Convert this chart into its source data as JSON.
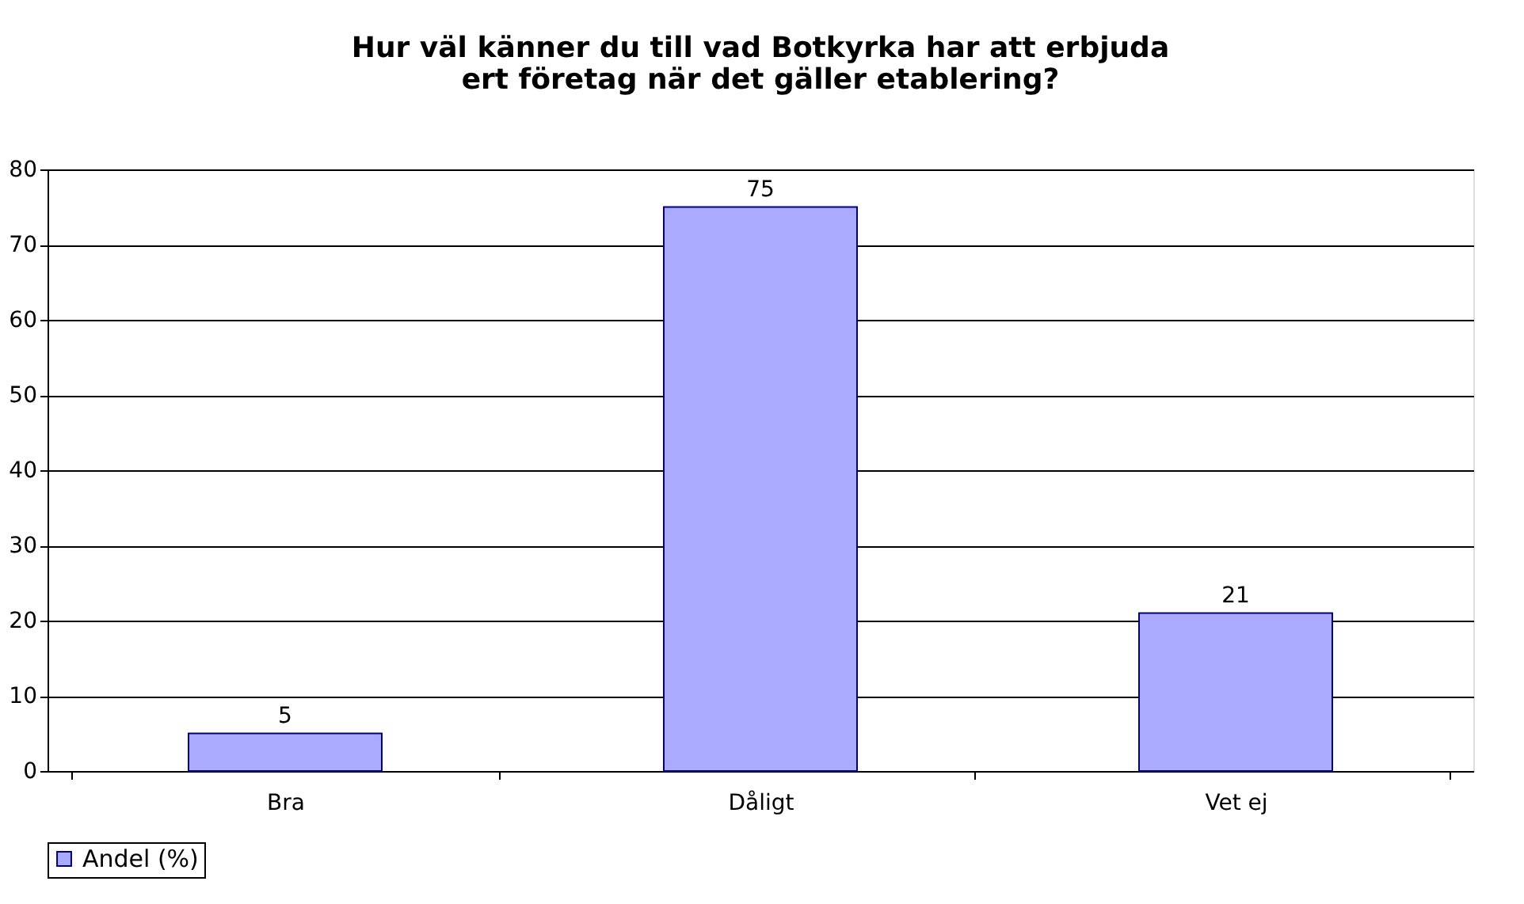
{
  "chart_data": {
    "type": "bar",
    "title": [
      "Hur väl känner du till vad Botkyrka har att erbjuda",
      "ert företag när det gäller etablering?"
    ],
    "categories": [
      "Bra",
      "Dåligt",
      "Vet ej"
    ],
    "series": [
      {
        "name": "Andel (%)",
        "color": "#aaaaff",
        "values": [
          5,
          75,
          21
        ]
      }
    ],
    "ylim": [
      0,
      80
    ],
    "yticks": [
      0,
      10,
      20,
      30,
      40,
      50,
      60,
      70,
      80
    ],
    "grid": "y",
    "legend": "bottom",
    "data_labels": true
  }
}
